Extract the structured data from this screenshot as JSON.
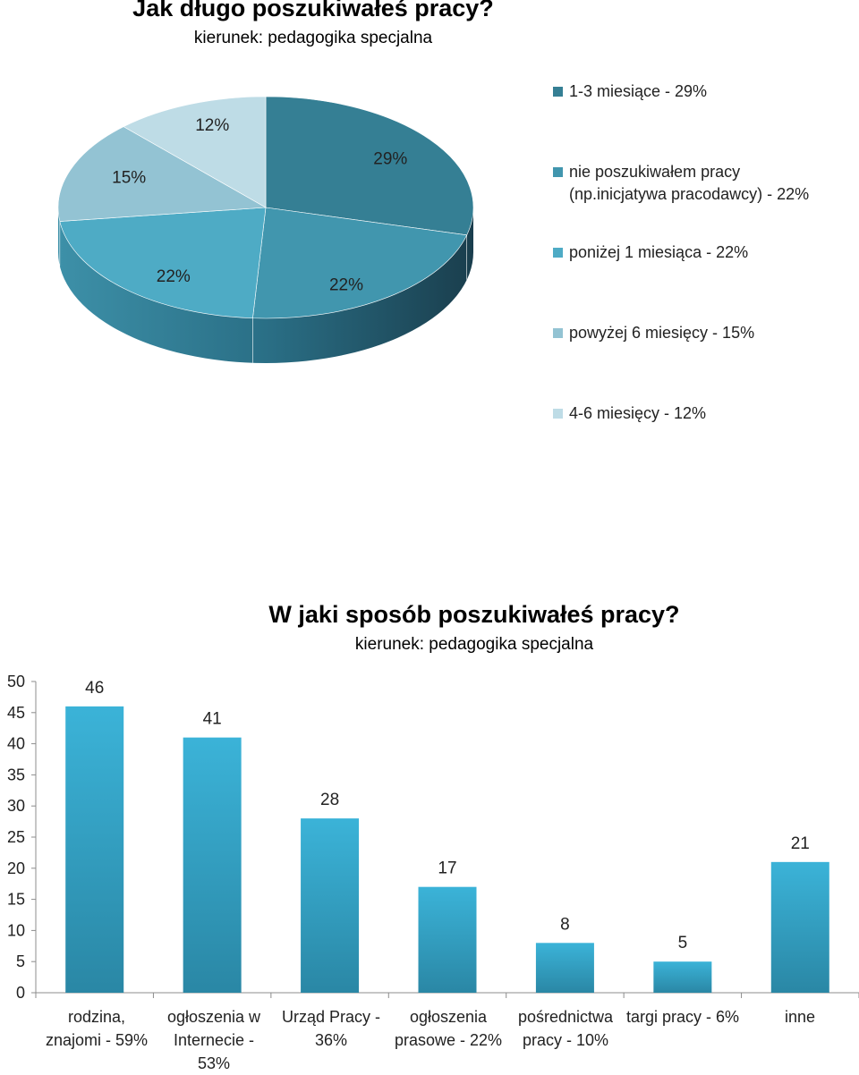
{
  "chart_data": [
    {
      "type": "pie",
      "title": "Jak długo poszukiwałeś pracy?",
      "subtitle": "kierunek: pedagogika specjalna",
      "legend_position": "right",
      "slices": [
        {
          "label": "1-3 miesiące - 29%",
          "value": 29,
          "data_label": "29%",
          "color": "#357f94"
        },
        {
          "label": "nie poszukiwałem pracy (np.inicjatywa pracodawcy) - 22%",
          "value": 22,
          "data_label": "22%",
          "color": "#4196ae"
        },
        {
          "label": "poniżej 1 miesiąca - 22%",
          "value": 22,
          "data_label": "22%",
          "color": "#4eabc5"
        },
        {
          "label": "powyżej 6 miesięcy - 15%",
          "value": 15,
          "data_label": "15%",
          "color": "#93c3d3"
        },
        {
          "label": "4-6 miesięcy - 12%",
          "value": 12,
          "data_label": "12%",
          "color": "#bedce6"
        }
      ]
    },
    {
      "type": "bar",
      "title": "W jaki sposób poszukiwałeś pracy?",
      "subtitle": "kierunek: pedagogika specjalna",
      "categories": [
        "rodzina, znajomi - 59%",
        "ogłoszenia w Internecie - 53%",
        "Urząd Pracy - 36%",
        "ogłoszenia prasowe - 22%",
        "pośrednictwa pracy - 10%",
        "targi pracy - 6%",
        "inne"
      ],
      "values": [
        46,
        41,
        28,
        17,
        8,
        5,
        21
      ],
      "ylim": [
        0,
        50
      ],
      "yticks": [
        0,
        5,
        10,
        15,
        20,
        25,
        30,
        35,
        40,
        45,
        50
      ],
      "grid": false,
      "colors": {
        "bar_top": "#3bb3d8",
        "bar_bottom": "#2a87a5"
      }
    }
  ]
}
